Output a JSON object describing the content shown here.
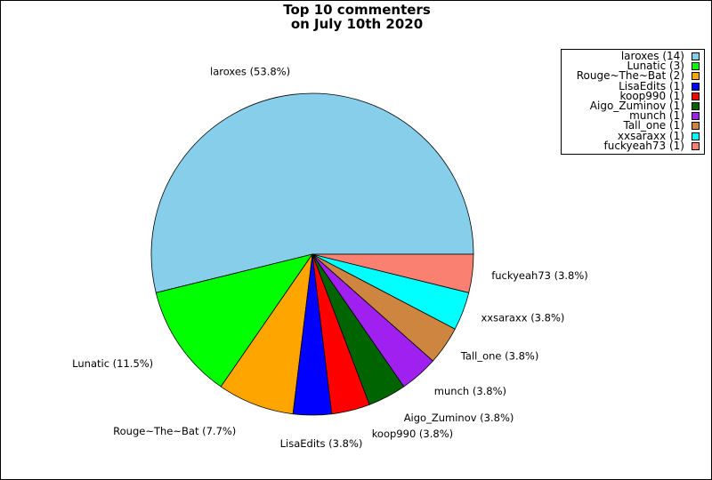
{
  "chart_data": {
    "type": "pie",
    "title_lines": [
      "Top 10 commenters",
      "on July 10th 2020"
    ],
    "slices": [
      {
        "name": "laroxes",
        "value": 14,
        "pct_label": "laroxes (53.8%)",
        "legend": "laroxes (14)",
        "color": "#87ceeb"
      },
      {
        "name": "Lunatic",
        "value": 3,
        "pct_label": "Lunatic (11.5%)",
        "legend": "Lunatic (3)",
        "color": "#00ff00"
      },
      {
        "name": "Rouge~The~Bat",
        "value": 2,
        "pct_label": "Rouge~The~Bat (7.7%)",
        "legend": "Rouge~The~Bat (2)",
        "color": "#ffa500"
      },
      {
        "name": "LisaEdits",
        "value": 1,
        "pct_label": "LisaEdits (3.8%)",
        "legend": "LisaEdits (1)",
        "color": "#0000ff"
      },
      {
        "name": "koop990",
        "value": 1,
        "pct_label": "koop990 (3.8%)",
        "legend": "koop990 (1)",
        "color": "#ff0000"
      },
      {
        "name": "Aigo_Zuminov",
        "value": 1,
        "pct_label": "Aigo_Zuminov (3.8%)",
        "legend": "Aigo_Zuminov (1)",
        "color": "#006400"
      },
      {
        "name": "munch",
        "value": 1,
        "pct_label": "munch (3.8%)",
        "legend": "munch (1)",
        "color": "#a020f0"
      },
      {
        "name": "Tall_one",
        "value": 1,
        "pct_label": "Tall_one (3.8%)",
        "legend": "Tall_one (1)",
        "color": "#cd853f"
      },
      {
        "name": "xxsaraxx",
        "value": 1,
        "pct_label": "xxsaraxx (3.8%)",
        "legend": "xxsaraxx (1)",
        "color": "#00ffff"
      },
      {
        "name": "fuckyeah73",
        "value": 1,
        "pct_label": "fuckyeah73 (3.8%)",
        "legend": "fuckyeah73 (1)",
        "color": "#fa8072"
      }
    ],
    "legend_position": "top-right",
    "start_angle": "east, counter-clockwise"
  }
}
